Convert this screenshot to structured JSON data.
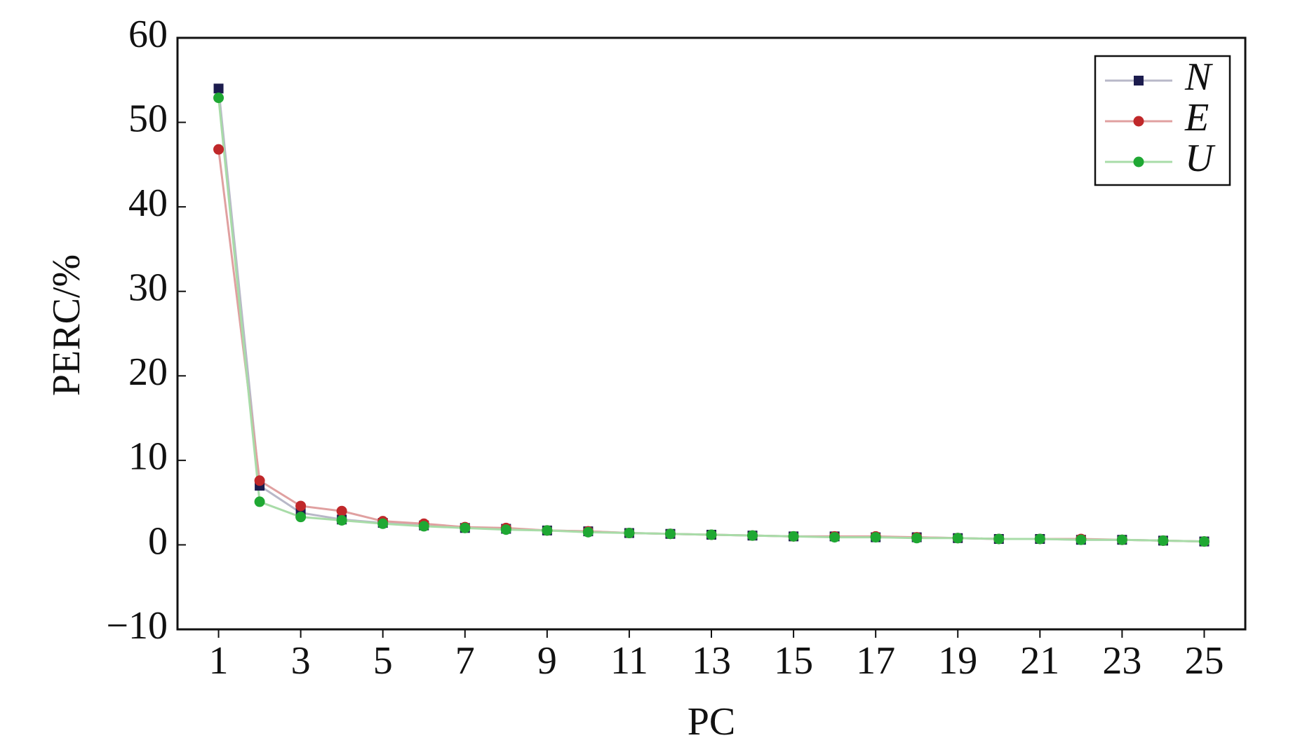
{
  "chart_data": {
    "type": "line",
    "xlabel": "PC",
    "ylabel": "PERC/%",
    "x": [
      1,
      2,
      3,
      4,
      5,
      6,
      7,
      8,
      9,
      10,
      11,
      12,
      13,
      14,
      15,
      16,
      17,
      18,
      19,
      20,
      21,
      22,
      23,
      24,
      25
    ],
    "series": [
      {
        "name": "N",
        "color": "#1c1c4e",
        "line_color": "#b8b8c8",
        "marker": "square",
        "values": [
          54,
          7,
          3.8,
          3.0,
          2.6,
          2.3,
          2.0,
          1.9,
          1.7,
          1.6,
          1.4,
          1.3,
          1.2,
          1.1,
          1.0,
          1.0,
          0.9,
          0.9,
          0.8,
          0.7,
          0.7,
          0.6,
          0.6,
          0.5,
          0.4
        ]
      },
      {
        "name": "E",
        "color": "#c0282a",
        "line_color": "#e0a0a0",
        "marker": "circle",
        "values": [
          46.8,
          7.6,
          4.6,
          4.0,
          2.8,
          2.5,
          2.1,
          2.0,
          1.7,
          1.6,
          1.4,
          1.3,
          1.2,
          1.1,
          1.0,
          1.0,
          1.0,
          0.9,
          0.8,
          0.7,
          0.7,
          0.7,
          0.6,
          0.5,
          0.4
        ]
      },
      {
        "name": "U",
        "color": "#1fa833",
        "line_color": "#a8dca8",
        "marker": "circle",
        "values": [
          52.9,
          5.1,
          3.3,
          2.9,
          2.5,
          2.2,
          2.0,
          1.8,
          1.7,
          1.5,
          1.4,
          1.3,
          1.2,
          1.1,
          1.0,
          0.9,
          0.9,
          0.8,
          0.8,
          0.7,
          0.7,
          0.6,
          0.6,
          0.5,
          0.4
        ]
      }
    ],
    "xlim": [
      0,
      26
    ],
    "xticks": [
      1,
      3,
      5,
      7,
      9,
      11,
      13,
      15,
      17,
      19,
      21,
      23,
      25
    ],
    "ylim": [
      -10,
      60
    ],
    "yticks": [
      {
        "value": -10,
        "label": "−10"
      },
      0,
      10,
      20,
      30,
      40,
      50,
      60
    ],
    "grid": false,
    "legend": "upper right"
  }
}
